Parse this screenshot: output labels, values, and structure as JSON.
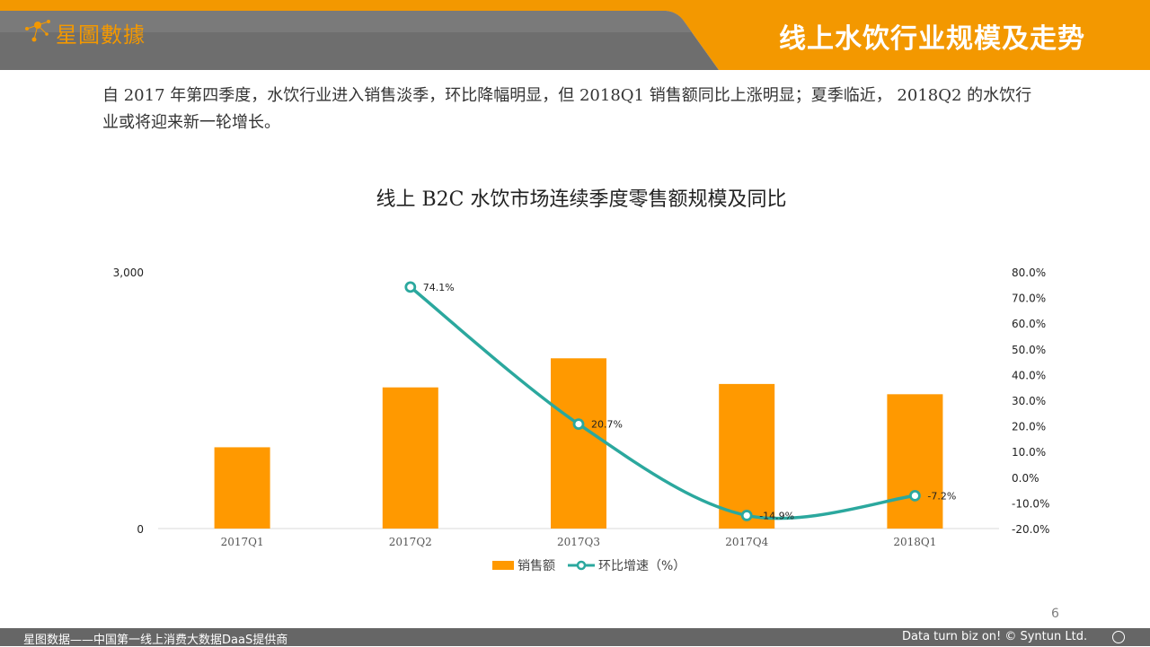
{
  "header": {
    "logo_text": "星圖數據",
    "title": "线上水饮行业规模及走势"
  },
  "intro": {
    "text": "自 2017 年第四季度，水饮行业进入销售淡季，环比降幅明显，但 2018Q1 销售额同比上涨明显；夏季临近， 2018Q2 的水饮行业或将迎来新一轮增长。"
  },
  "colors": {
    "accent_orange": "#F39800",
    "bar": "#FF9900",
    "line": "#2BA89E",
    "header_gray": "#6E6E6E",
    "footer_gray": "#666666"
  },
  "chart_data": {
    "type": "bar",
    "title": "线上 B2C 水饮市场连续季度零售额规模及同比",
    "categories": [
      "2017Q1",
      "2017Q2",
      "2017Q3",
      "2017Q4",
      "2018Q1"
    ],
    "series": [
      {
        "name": "销售额",
        "type": "bar",
        "axis": "left",
        "values": [
          950,
          1650,
          1990,
          1690,
          1570
        ]
      },
      {
        "name": "环比增速（%）",
        "type": "line",
        "axis": "right",
        "values": [
          null,
          74.1,
          20.7,
          -14.9,
          -7.2
        ],
        "labels": [
          "",
          "74.1%",
          "20.7%",
          "-14.9%",
          "-7.2%"
        ]
      }
    ],
    "left_axis": {
      "ylim": [
        0,
        3000
      ],
      "tick_labels": [
        "0",
        "3,000"
      ]
    },
    "right_axis": {
      "ylim": [
        -20,
        80
      ],
      "tick_labels": [
        "80.0%",
        "70.0%",
        "60.0%",
        "50.0%",
        "40.0%",
        "30.0%",
        "20.0%",
        "10.0%",
        "0.0%",
        "-10.0%",
        "-20.0%"
      ]
    },
    "grid": false,
    "legend": "bottom"
  },
  "page_number": "6",
  "footer": {
    "left": "星图数据——中国第一线上消费大数据DaaS提供商",
    "right": "Data turn biz on! © Syntun Ltd."
  }
}
